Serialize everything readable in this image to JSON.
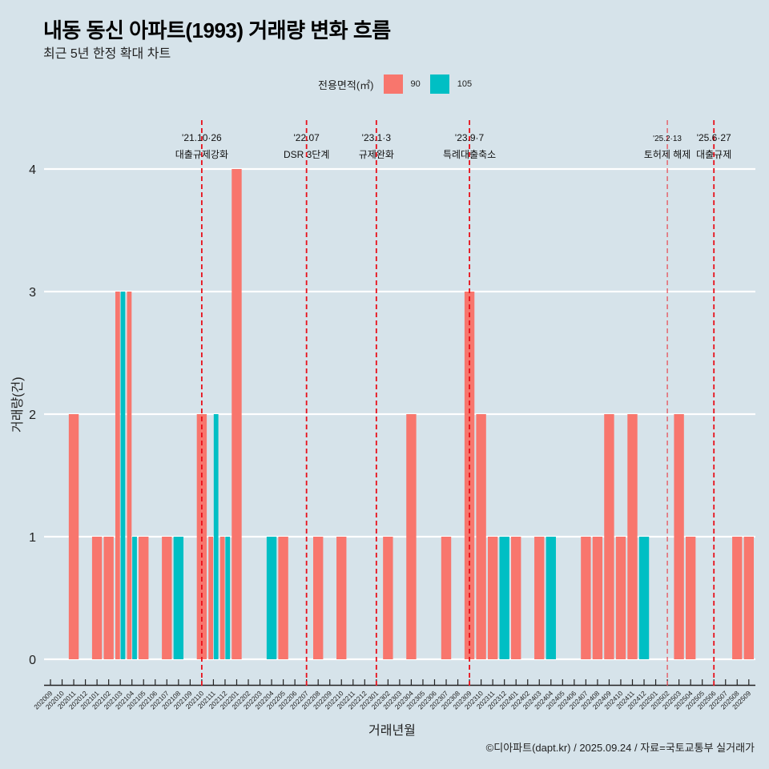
{
  "header": {
    "title": "내동 동신 아파트(1993) 거래량 변화 흐름",
    "subtitle": "최근 5년 한정 확대 차트"
  },
  "caption": "©디아파트(dapt.kr) / 2025.09.24 / 자료=국토교통부 실거래가",
  "chart_data": {
    "type": "bar",
    "title": "내동 동신 아파트(1993) 거래량 변화 흐름",
    "subtitle": "최근 5년 한정 확대 차트",
    "xlabel": "거래년월",
    "ylabel": "거래량(건)",
    "ylim": [
      0,
      4
    ],
    "yticks": [
      0,
      1,
      2,
      3,
      4
    ],
    "grid": "horizontal",
    "legend": {
      "title": "전용면적(㎡)",
      "position": "top",
      "entries": [
        "90",
        "105"
      ]
    },
    "categories": [
      "202009",
      "202010",
      "202011",
      "202012",
      "202101",
      "202102",
      "202103",
      "202104",
      "202105",
      "202106",
      "202107",
      "202108",
      "202109",
      "202110",
      "202111",
      "202112",
      "202201",
      "202202",
      "202203",
      "202204",
      "202205",
      "202206",
      "202207",
      "202208",
      "202209",
      "202210",
      "202211",
      "202212",
      "202301",
      "202302",
      "202303",
      "202304",
      "202305",
      "202306",
      "202307",
      "202308",
      "202309",
      "202310",
      "202311",
      "202312",
      "202401",
      "202402",
      "202403",
      "202404",
      "202405",
      "202406",
      "202407",
      "202408",
      "202409",
      "202410",
      "202411",
      "202412",
      "202501",
      "202502",
      "202503",
      "202504",
      "202505",
      "202506",
      "202507",
      "202508",
      "202509"
    ],
    "series": [
      {
        "name": "90",
        "color": "#f8766d",
        "values": [
          0,
          0,
          2,
          0,
          1,
          1,
          3,
          3,
          1,
          0,
          1,
          0,
          0,
          2,
          1,
          1,
          4,
          0,
          0,
          0,
          1,
          0,
          0,
          1,
          0,
          1,
          0,
          0,
          0,
          1,
          0,
          2,
          0,
          0,
          1,
          0,
          3,
          2,
          1,
          0,
          1,
          0,
          1,
          0,
          0,
          0,
          1,
          1,
          2,
          1,
          2,
          0,
          0,
          0,
          2,
          1,
          0,
          0,
          0,
          1,
          1
        ]
      },
      {
        "name": "105",
        "color": "#00bfc4",
        "values": [
          0,
          0,
          0,
          0,
          0,
          0,
          3,
          1,
          0,
          0,
          0,
          1,
          0,
          0,
          2,
          1,
          0,
          0,
          0,
          1,
          0,
          0,
          0,
          0,
          0,
          0,
          0,
          0,
          0,
          0,
          0,
          0,
          0,
          0,
          0,
          0,
          0,
          0,
          0,
          1,
          0,
          0,
          0,
          1,
          0,
          0,
          0,
          0,
          0,
          0,
          0,
          1,
          0,
          0,
          0,
          0,
          0,
          0,
          0,
          0,
          0
        ]
      }
    ],
    "annotations": [
      {
        "month": "202110",
        "date": "'21.10·26",
        "label": "대출규제강화"
      },
      {
        "month": "202207",
        "date": "'22.07",
        "label": "DSR 3단계"
      },
      {
        "month": "202301",
        "date": "'23.1·3",
        "label": "규제완화"
      },
      {
        "month": "202309",
        "date": "'23.9·7",
        "label": "특례대출축소"
      },
      {
        "month": "202502",
        "date": "'25.2·13",
        "label": "토허제 해제",
        "minor": true
      },
      {
        "month": "202506",
        "date": "'25.6·27",
        "label": "대출규제"
      }
    ]
  }
}
